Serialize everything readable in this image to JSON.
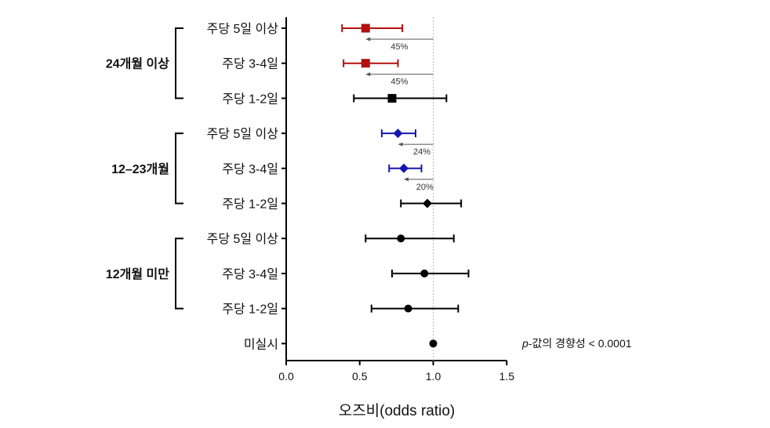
{
  "chart_data": {
    "type": "forest",
    "xlabel": "오즈비(odds ratio)",
    "xlim": [
      0,
      1.5
    ],
    "xticks": [
      "0.0",
      "0.5",
      "1.0",
      "1.5"
    ],
    "reference_line": 1.0,
    "groups": [
      {
        "label": "24개월 이상",
        "rows": [
          0,
          1,
          2
        ]
      },
      {
        "label": "12–23개월",
        "rows": [
          3,
          4,
          5
        ]
      },
      {
        "label": "12개월 미만",
        "rows": [
          6,
          7,
          8
        ]
      }
    ],
    "rows": [
      {
        "label": "주당 5일 이상",
        "or": 0.54,
        "lo": 0.38,
        "hi": 0.79,
        "marker": "square",
        "color": "#b01010",
        "reduction": "45%"
      },
      {
        "label": "주당 3-4일",
        "or": 0.54,
        "lo": 0.39,
        "hi": 0.76,
        "marker": "square",
        "color": "#b01010",
        "reduction": "45%"
      },
      {
        "label": "주당 1-2일",
        "or": 0.72,
        "lo": 0.46,
        "hi": 1.09,
        "marker": "square",
        "color": "#000000",
        "reduction": null
      },
      {
        "label": "주당 5일 이상",
        "or": 0.76,
        "lo": 0.65,
        "hi": 0.88,
        "marker": "diamond",
        "color": "#1515b0",
        "reduction": "24%"
      },
      {
        "label": "주당 3-4일",
        "or": 0.8,
        "lo": 0.7,
        "hi": 0.92,
        "marker": "diamond",
        "color": "#1515b0",
        "reduction": "20%"
      },
      {
        "label": "주당 1-2일",
        "or": 0.96,
        "lo": 0.78,
        "hi": 1.19,
        "marker": "diamond",
        "color": "#000000",
        "reduction": null
      },
      {
        "label": "주당 5일 이상",
        "or": 0.78,
        "lo": 0.54,
        "hi": 1.14,
        "marker": "circle",
        "color": "#000000",
        "reduction": null
      },
      {
        "label": "주당 3-4일",
        "or": 0.94,
        "lo": 0.72,
        "hi": 1.24,
        "marker": "circle",
        "color": "#000000",
        "reduction": null
      },
      {
        "label": "주당 1-2일",
        "or": 0.83,
        "lo": 0.58,
        "hi": 1.17,
        "marker": "circle",
        "color": "#000000",
        "reduction": null
      },
      {
        "label": "미실시",
        "or": 1.0,
        "lo": null,
        "hi": null,
        "marker": "circle",
        "color": "#000000",
        "reduction": null
      }
    ],
    "annotation": {
      "p_label": "p",
      "text": "-값의 경향성 < 0.0001"
    }
  }
}
